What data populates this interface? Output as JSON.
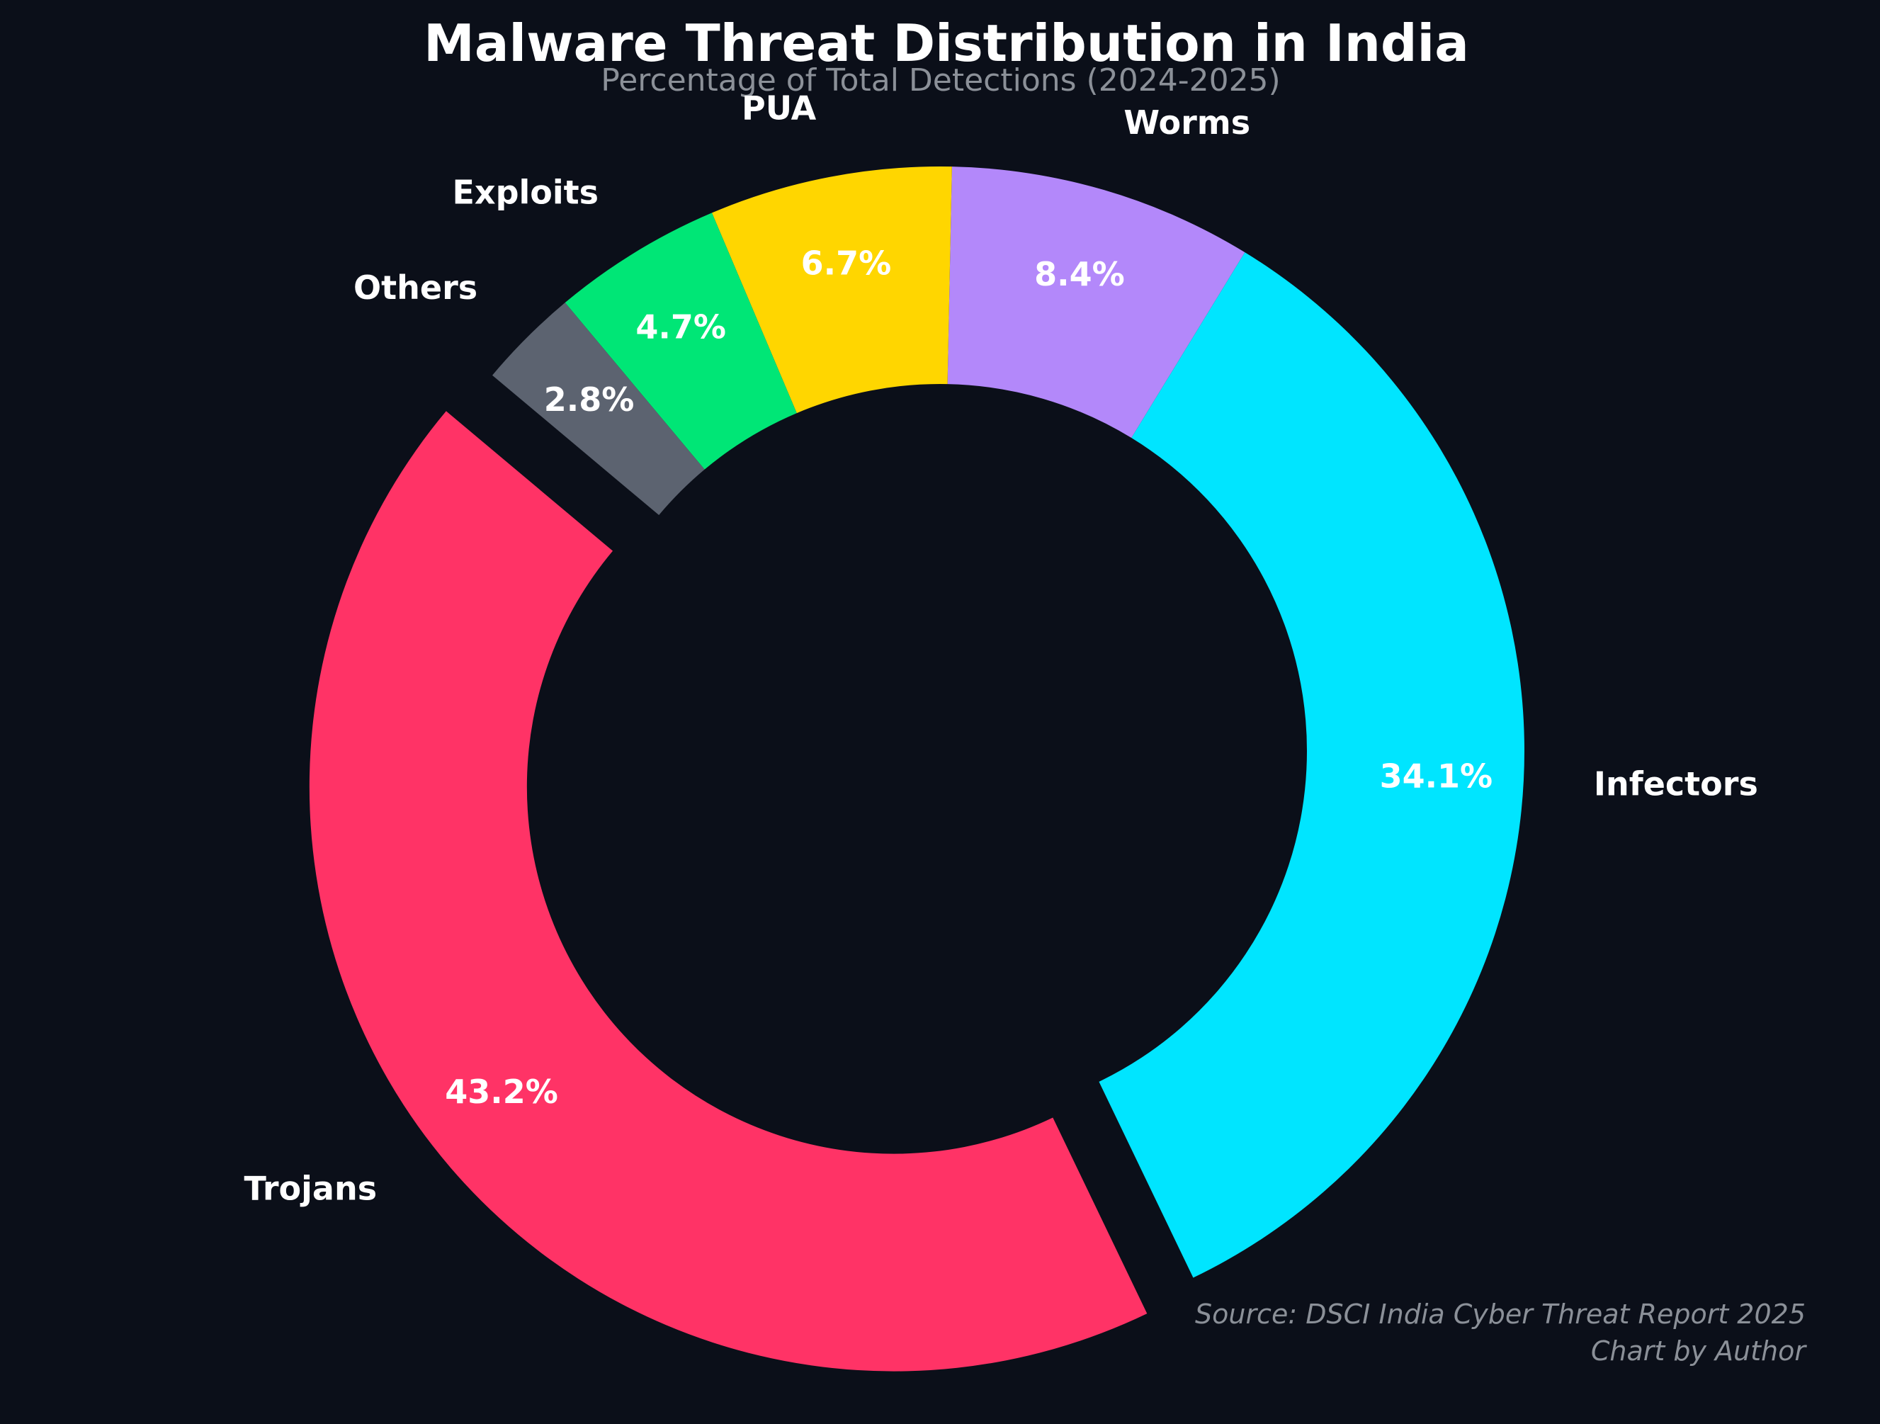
{
  "chart_data": {
    "type": "pie",
    "title": "Malware Threat Distribution in India",
    "subtitle": "Percentage of Total Detections (2024-2025)",
    "categories": [
      "Trojans",
      "Infectors",
      "Worms",
      "PUA",
      "Exploits",
      "Others"
    ],
    "values": [
      43.2,
      34.1,
      8.4,
      6.7,
      4.7,
      2.8
    ],
    "value_labels": [
      "43.2%",
      "34.1%",
      "8.4%",
      "6.7%",
      "4.7%",
      "2.8%"
    ],
    "colors": [
      "#ff3366",
      "#00e5ff",
      "#b388fa",
      "#ffd600",
      "#00e676",
      "#5c6370"
    ],
    "exploded": [
      "Trojans"
    ],
    "donut": true,
    "legend": "none",
    "source_line1": "Source: DSCI India Cyber Threat Report 2025",
    "source_line2": "Chart by Author"
  }
}
